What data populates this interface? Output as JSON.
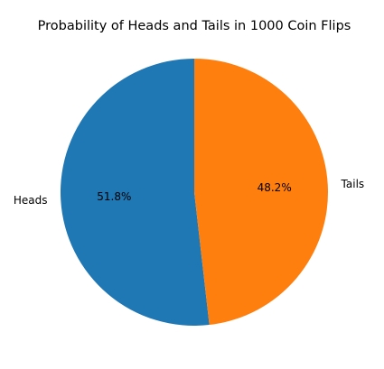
{
  "chart_data": {
    "type": "pie",
    "title": "Probability of Heads and Tails in 1000 Coin Flips",
    "categories": [
      "Heads",
      "Tails"
    ],
    "values": [
      51.8,
      48.2
    ],
    "percent_labels": [
      "51.8%",
      "48.2%"
    ],
    "colors": [
      "#1f77b4",
      "#ff7f0e"
    ],
    "start_angle_deg": 90,
    "direction": "counterclockwise"
  }
}
